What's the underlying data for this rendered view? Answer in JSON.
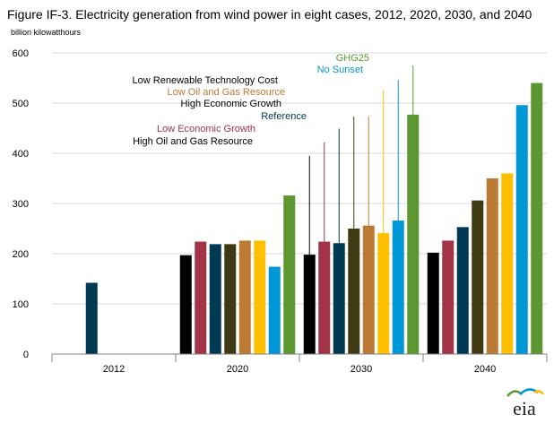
{
  "chart_data": {
    "type": "bar",
    "title": "Figure IF-3. Electricity generation from wind power in eight cases, 2012, 2020, 2030, and 2040",
    "ylabel": "billion kilowatthours",
    "xlabel": "",
    "ylim": [
      0,
      600
    ],
    "yticks": [
      0,
      100,
      200,
      300,
      400,
      500,
      600
    ],
    "grid": true,
    "categories": [
      "2012",
      "2020",
      "2030",
      "2040"
    ],
    "series": [
      {
        "name": "High Oil and Gas Resource",
        "color": "#000000",
        "values": [
          null,
          197,
          198,
          202
        ]
      },
      {
        "name": "Low Economic Growth",
        "color": "#A33346",
        "values": [
          null,
          224,
          224,
          226
        ]
      },
      {
        "name": "Reference",
        "color": "#003953",
        "values": [
          142,
          219,
          221,
          253
        ]
      },
      {
        "name": "High Economic Growth",
        "color": "#3F3A13",
        "values": [
          null,
          219,
          250,
          306
        ]
      },
      {
        "name": "Low Oil and Gas Resource",
        "color": "#BD7A35",
        "values": [
          null,
          226,
          256,
          350
        ]
      },
      {
        "name": "Low Renewable Technology Cost",
        "color": "#FFC000",
        "values": [
          null,
          226,
          241,
          360
        ]
      },
      {
        "name": "No Sunset",
        "color": "#0097D6",
        "values": [
          null,
          174,
          266,
          496
        ]
      },
      {
        "name": "GHG25",
        "color": "#5D9732",
        "values": [
          null,
          316,
          477,
          540
        ]
      }
    ],
    "whiskers_2030": [
      395,
      422,
      449,
      473,
      473,
      525,
      546,
      575
    ],
    "labels": [
      {
        "text": "GHG25",
        "series": 7
      },
      {
        "text": "No Sunset",
        "series": 6
      },
      {
        "text": "Low Renewable Technology Cost",
        "series": 5
      },
      {
        "text": "Low Oil and Gas Resource",
        "series": 4
      },
      {
        "text": "High Economic Growth",
        "series": 3
      },
      {
        "text": "Reference",
        "series": 2
      },
      {
        "text": "Low Economic Growth",
        "series": 1
      },
      {
        "text": "High Oil and Gas Resource",
        "series": 0
      }
    ]
  },
  "logo": {
    "text": "eia"
  }
}
